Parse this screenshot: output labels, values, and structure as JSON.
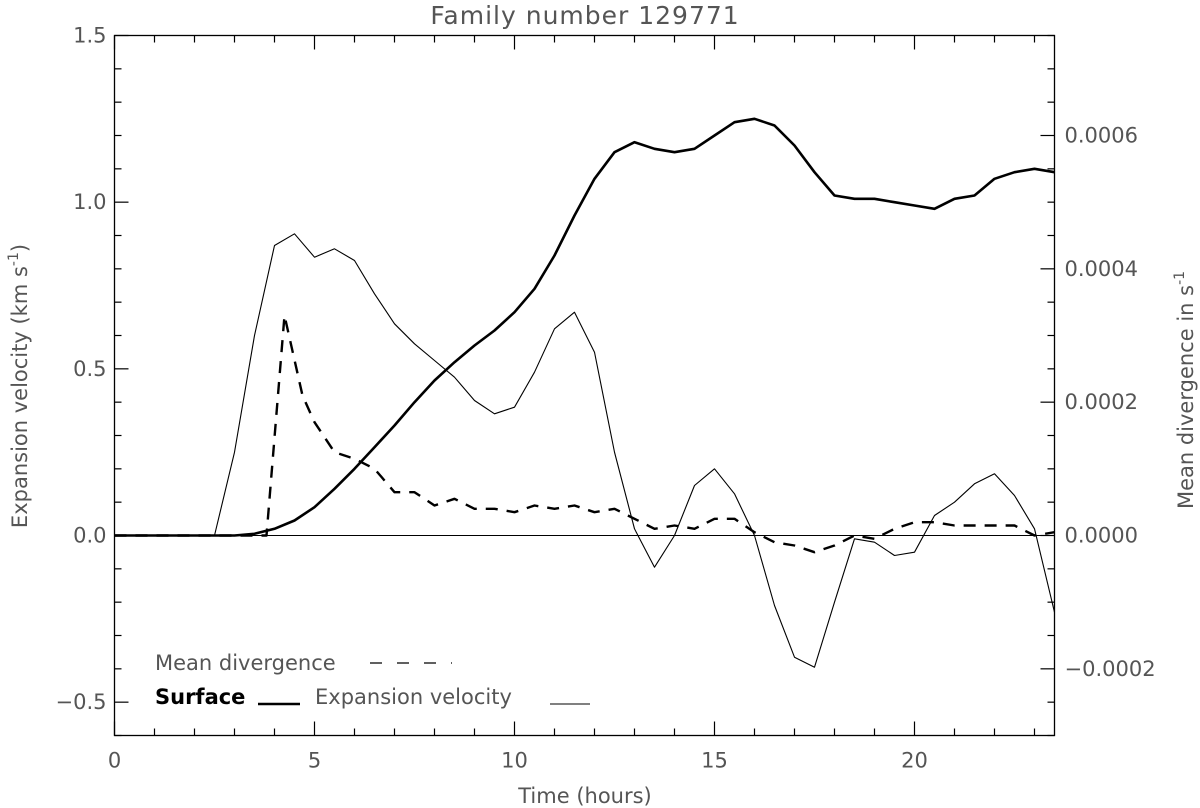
{
  "chart_data": {
    "type": "line",
    "title": "Family number 129771",
    "xlabel": "Time (hours)",
    "ylabel_left_text": "Expansion velocity (km s",
    "ylabel_left_sup": "-1",
    "ylabel_left_close": ")",
    "ylabel_right_text": "Mean divergence in s",
    "ylabel_right_sup": "-1",
    "xlim": [
      0,
      23.5
    ],
    "ylim_left": [
      -0.6,
      1.5
    ],
    "ylim_right": [
      -0.0003,
      0.00075
    ],
    "x_ticks": [
      0,
      5,
      10,
      15,
      20
    ],
    "x_tick_labels": [
      "0",
      "5",
      "10",
      "15",
      "20"
    ],
    "y_left_ticks": [
      -0.5,
      0.0,
      0.5,
      1.0,
      1.5
    ],
    "y_left_tick_labels": [
      "−0.5",
      "0.0",
      "0.5",
      "1.0",
      "1.5"
    ],
    "y_right_ticks": [
      -0.0002,
      0.0,
      0.0002,
      0.0004,
      0.0006
    ],
    "y_right_tick_labels": [
      "−0.0002",
      "0.0000",
      "0.0002",
      "0.0004",
      "0.0006"
    ],
    "legend": {
      "mean_divergence": "Mean divergence",
      "surface": "Surface",
      "expansion_velocity": "Expansion velocity"
    },
    "series": [
      {
        "name": "Surface",
        "axis": "left",
        "style": "thick",
        "x": [
          0,
          3,
          3.5,
          4,
          4.5,
          5,
          5.5,
          6,
          6.5,
          7,
          7.5,
          8,
          8.5,
          9,
          9.5,
          10,
          10.5,
          11,
          11.5,
          12,
          12.5,
          13,
          13.5,
          14,
          14.5,
          15,
          15.5,
          16,
          16.5,
          17,
          17.5,
          18,
          18.5,
          19,
          19.5,
          20,
          20.5,
          21,
          21.5,
          22,
          22.5,
          23,
          23.5
        ],
        "y": [
          0,
          0,
          0.005,
          0.02,
          0.045,
          0.085,
          0.14,
          0.2,
          0.265,
          0.33,
          0.4,
          0.465,
          0.52,
          0.57,
          0.615,
          0.67,
          0.74,
          0.84,
          0.96,
          1.07,
          1.15,
          1.18,
          1.16,
          1.15,
          1.16,
          1.2,
          1.24,
          1.25,
          1.23,
          1.17,
          1.09,
          1.02,
          1.01,
          1.01,
          1.0,
          0.99,
          0.98,
          1.01,
          1.02,
          1.07,
          1.09,
          1.1,
          1.09
        ]
      },
      {
        "name": "Expansion velocity",
        "axis": "left",
        "style": "thin",
        "x": [
          0,
          2.5,
          3,
          3.5,
          4,
          4.5,
          5,
          5.5,
          6,
          6.5,
          7,
          7.5,
          8,
          8.5,
          9,
          9.5,
          10,
          10.5,
          11,
          11.5,
          12,
          12.5,
          13,
          13.5,
          14,
          14.5,
          15,
          15.5,
          16,
          16.5,
          17,
          17.5,
          18,
          18.5,
          19,
          19.5,
          20,
          20.5,
          21,
          21.5,
          22,
          22.5,
          23,
          23.5
        ],
        "y": [
          0,
          0,
          0.25,
          0.6,
          0.87,
          0.905,
          0.835,
          0.86,
          0.825,
          0.725,
          0.635,
          0.575,
          0.525,
          0.475,
          0.405,
          0.365,
          0.385,
          0.49,
          0.62,
          0.67,
          0.55,
          0.25,
          0.02,
          -0.095,
          0.0,
          0.15,
          0.2,
          0.125,
          0.0,
          -0.21,
          -0.365,
          -0.395,
          -0.2,
          -0.01,
          -0.02,
          -0.06,
          -0.05,
          0.06,
          0.1,
          0.155,
          0.185,
          0.12,
          0.02,
          -0.23
        ]
      },
      {
        "name": "Mean divergence",
        "axis": "right",
        "style": "dashed",
        "x": [
          0,
          3.8,
          4.25,
          4.7,
          5,
          5.5,
          6,
          6.5,
          7,
          7.5,
          8,
          8.5,
          9,
          9.5,
          10,
          10.5,
          11,
          11.5,
          12,
          12.5,
          13,
          13.5,
          14,
          14.5,
          15,
          15.5,
          16,
          16.5,
          17,
          17.5,
          18,
          18.5,
          19,
          19.5,
          20,
          20.5,
          21,
          21.5,
          22,
          22.5,
          23,
          23.5
        ],
        "y": [
          0,
          0,
          0.00033,
          0.00021,
          0.00017,
          0.000125,
          0.000115,
          0.0001,
          6.5e-05,
          6.5e-05,
          4.5e-05,
          5.5e-05,
          4e-05,
          4e-05,
          3.5e-05,
          4.5e-05,
          4e-05,
          4.5e-05,
          3.5e-05,
          4e-05,
          2.5e-05,
          1e-05,
          1.5e-05,
          1e-05,
          2.5e-05,
          2.5e-05,
          5e-06,
          -1e-05,
          -1.5e-05,
          -2.5e-05,
          -1.5e-05,
          0.0,
          -5e-06,
          1e-05,
          2e-05,
          2e-05,
          1.5e-05,
          1.5e-05,
          1.5e-05,
          1.5e-05,
          0.0,
          5e-06
        ]
      }
    ]
  }
}
